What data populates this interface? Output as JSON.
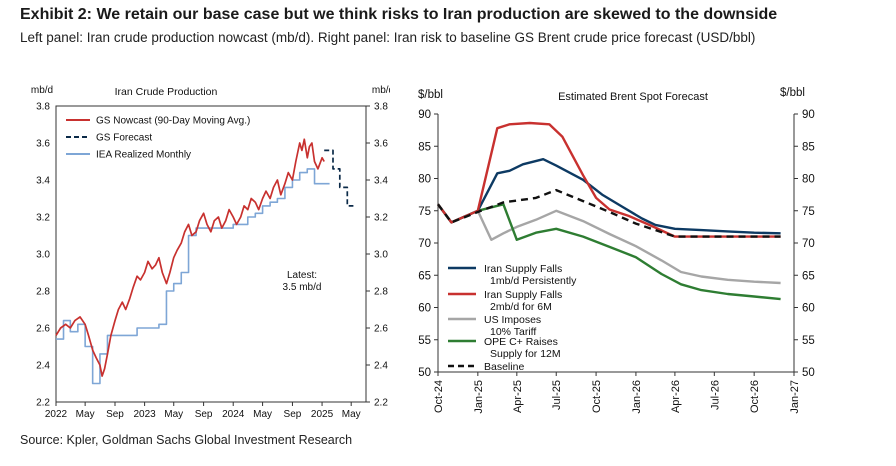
{
  "header": {
    "title": "Exhibit 2: We retain our base case but we think risks to Iran production are skewed to the downside",
    "subtitle": "Left panel: Iran crude production nowcast (mb/d). Right panel: Iran risk to baseline GS Brent crude price forecast (USD/bbl)"
  },
  "footer": {
    "source": "Source: Kpler, Goldman Sachs Global Investment Research"
  },
  "chart_data": [
    {
      "type": "line",
      "title": "Iran Crude Production",
      "ylabel_left": "mb/d",
      "ylabel_right": "mb/d",
      "ylim": [
        2.2,
        3.8
      ],
      "yticks": [
        "3.8",
        "3.6",
        "3.4",
        "3.2",
        "3.0",
        "2.8",
        "2.6",
        "2.4",
        "2.2"
      ],
      "xlim": [
        "2022-01",
        "2025-07"
      ],
      "xticks": [
        "2022",
        "May",
        "Sep",
        "2023",
        "May",
        "Sep",
        "2024",
        "May",
        "Sep",
        "2025",
        "May"
      ],
      "annotation": "Latest:\n3.5 mb/d",
      "series": [
        {
          "name": "GS Nowcast (90-Day Moving Avg.)",
          "color": "#c8312f",
          "style": "solid",
          "points": [
            [
              "2022-01-01",
              2.56
            ],
            [
              "2022-01-20",
              2.6
            ],
            [
              "2022-02-10",
              2.62
            ],
            [
              "2022-03-01",
              2.6
            ],
            [
              "2022-03-20",
              2.64
            ],
            [
              "2022-04-10",
              2.66
            ],
            [
              "2022-05-01",
              2.62
            ],
            [
              "2022-05-15",
              2.56
            ],
            [
              "2022-06-01",
              2.48
            ],
            [
              "2022-06-15",
              2.44
            ],
            [
              "2022-07-01",
              2.4
            ],
            [
              "2022-07-10",
              2.34
            ],
            [
              "2022-07-20",
              2.38
            ],
            [
              "2022-08-01",
              2.46
            ],
            [
              "2022-08-15",
              2.56
            ],
            [
              "2022-09-01",
              2.64
            ],
            [
              "2022-09-15",
              2.7
            ],
            [
              "2022-10-01",
              2.74
            ],
            [
              "2022-10-15",
              2.7
            ],
            [
              "2022-11-01",
              2.76
            ],
            [
              "2022-11-15",
              2.82
            ],
            [
              "2022-12-01",
              2.88
            ],
            [
              "2022-12-15",
              2.86
            ],
            [
              "2023-01-01",
              2.9
            ],
            [
              "2023-01-15",
              2.96
            ],
            [
              "2023-02-01",
              2.92
            ],
            [
              "2023-02-15",
              2.94
            ],
            [
              "2023-03-01",
              2.98
            ],
            [
              "2023-03-15",
              2.9
            ],
            [
              "2023-04-01",
              2.84
            ],
            [
              "2023-04-15",
              2.9
            ],
            [
              "2023-05-01",
              2.98
            ],
            [
              "2023-05-15",
              3.02
            ],
            [
              "2023-06-01",
              3.06
            ],
            [
              "2023-06-15",
              3.12
            ],
            [
              "2023-07-01",
              3.16
            ],
            [
              "2023-07-15",
              3.1
            ],
            [
              "2023-08-01",
              3.12
            ],
            [
              "2023-08-15",
              3.18
            ],
            [
              "2023-09-01",
              3.22
            ],
            [
              "2023-09-15",
              3.16
            ],
            [
              "2023-10-01",
              3.12
            ],
            [
              "2023-10-15",
              3.18
            ],
            [
              "2023-11-01",
              3.2
            ],
            [
              "2023-11-15",
              3.14
            ],
            [
              "2023-12-01",
              3.18
            ],
            [
              "2023-12-15",
              3.24
            ],
            [
              "2024-01-01",
              3.2
            ],
            [
              "2024-01-15",
              3.16
            ],
            [
              "2024-02-01",
              3.2
            ],
            [
              "2024-02-15",
              3.26
            ],
            [
              "2024-03-01",
              3.24
            ],
            [
              "2024-03-15",
              3.3
            ],
            [
              "2024-04-01",
              3.28
            ],
            [
              "2024-04-15",
              3.24
            ],
            [
              "2024-05-01",
              3.3
            ],
            [
              "2024-05-15",
              3.34
            ],
            [
              "2024-06-01",
              3.3
            ],
            [
              "2024-06-15",
              3.36
            ],
            [
              "2024-07-01",
              3.4
            ],
            [
              "2024-07-15",
              3.32
            ],
            [
              "2024-08-01",
              3.38
            ],
            [
              "2024-08-15",
              3.44
            ],
            [
              "2024-09-01",
              3.4
            ],
            [
              "2024-09-15",
              3.5
            ],
            [
              "2024-10-01",
              3.6
            ],
            [
              "2024-10-10",
              3.56
            ],
            [
              "2024-10-20",
              3.62
            ],
            [
              "2024-11-01",
              3.52
            ],
            [
              "2024-11-10",
              3.58
            ],
            [
              "2024-11-20",
              3.6
            ],
            [
              "2024-12-01",
              3.5
            ],
            [
              "2024-12-15",
              3.46
            ],
            [
              "2025-01-01",
              3.52
            ],
            [
              "2025-01-10",
              3.5
            ]
          ]
        },
        {
          "name": "GS Forecast",
          "color": "#0b2a48",
          "style": "dashed",
          "points": [
            [
              "2025-01-10",
              3.56
            ],
            [
              "2025-02-15",
              3.56
            ],
            [
              "2025-02-15",
              3.46
            ],
            [
              "2025-03-15",
              3.46
            ],
            [
              "2025-03-15",
              3.36
            ],
            [
              "2025-04-15",
              3.36
            ],
            [
              "2025-04-15",
              3.26
            ],
            [
              "2025-05-10",
              3.26
            ]
          ]
        },
        {
          "name": "IEA Realized Monthly",
          "color": "#7ea6d6",
          "style": "step",
          "points": [
            [
              "2022-01-01",
              2.54
            ],
            [
              "2022-02-01",
              2.64
            ],
            [
              "2022-03-01",
              2.58
            ],
            [
              "2022-04-01",
              2.62
            ],
            [
              "2022-05-01",
              2.5
            ],
            [
              "2022-06-01",
              2.3
            ],
            [
              "2022-07-01",
              2.46
            ],
            [
              "2022-08-01",
              2.56
            ],
            [
              "2022-09-01",
              2.56
            ],
            [
              "2022-10-01",
              2.56
            ],
            [
              "2022-11-01",
              2.56
            ],
            [
              "2022-12-01",
              2.6
            ],
            [
              "2023-01-01",
              2.6
            ],
            [
              "2023-02-01",
              2.6
            ],
            [
              "2023-03-01",
              2.62
            ],
            [
              "2023-04-01",
              2.8
            ],
            [
              "2023-05-01",
              2.84
            ],
            [
              "2023-06-01",
              2.9
            ],
            [
              "2023-07-01",
              3.1
            ],
            [
              "2023-08-01",
              3.14
            ],
            [
              "2023-09-01",
              3.14
            ],
            [
              "2023-10-01",
              3.14
            ],
            [
              "2023-11-01",
              3.14
            ],
            [
              "2023-12-01",
              3.14
            ],
            [
              "2024-01-01",
              3.16
            ],
            [
              "2024-02-01",
              3.16
            ],
            [
              "2024-03-01",
              3.2
            ],
            [
              "2024-04-01",
              3.22
            ],
            [
              "2024-05-01",
              3.26
            ],
            [
              "2024-06-01",
              3.28
            ],
            [
              "2024-07-01",
              3.3
            ],
            [
              "2024-08-01",
              3.36
            ],
            [
              "2024-09-01",
              3.4
            ],
            [
              "2024-10-01",
              3.44
            ],
            [
              "2024-11-01",
              3.46
            ],
            [
              "2024-12-01",
              3.38
            ],
            [
              "2025-01-01",
              3.38
            ]
          ]
        }
      ]
    },
    {
      "type": "line",
      "title": "Estimated Brent Spot Forecast",
      "ylabel_left": "$/bbl",
      "ylabel_right": "$/bbl",
      "ylim": [
        50,
        90
      ],
      "yticks": [
        "90",
        "85",
        "80",
        "75",
        "70",
        "65",
        "60",
        "55",
        "50"
      ],
      "xlim": [
        "2024-10",
        "2027-01"
      ],
      "xticks": [
        "Oct-24",
        "Jan-25",
        "Apr-25",
        "Jul-25",
        "Oct-25",
        "Jan-26",
        "Apr-26",
        "Jul-26",
        "Oct-26",
        "Jan-27"
      ],
      "series": [
        {
          "name": "Iran Supply Falls 1mb/d Persistently",
          "color": "#0d3a63",
          "style": "solid",
          "points": [
            [
              "2024-10-01",
              76
            ],
            [
              "2024-11-01",
              73.2
            ],
            [
              "2025-01-01",
              75
            ],
            [
              "2025-02-15",
              80.8
            ],
            [
              "2025-03-15",
              81.2
            ],
            [
              "2025-04-15",
              82.2
            ],
            [
              "2025-06-01",
              83
            ],
            [
              "2025-07-01",
              82
            ],
            [
              "2025-09-01",
              79.8
            ],
            [
              "2025-10-15",
              77.5
            ],
            [
              "2025-12-01",
              75.6
            ],
            [
              "2026-01-15",
              73.8
            ],
            [
              "2026-02-15",
              72.8
            ],
            [
              "2026-04-01",
              72.2
            ],
            [
              "2026-06-01",
              72
            ],
            [
              "2026-08-01",
              71.8
            ],
            [
              "2026-10-01",
              71.6
            ],
            [
              "2026-12-01",
              71.5
            ]
          ]
        },
        {
          "name": "Iran Supply Falls 2mb/d for 6M",
          "color": "#c8312f",
          "style": "solid",
          "points": [
            [
              "2024-10-01",
              76
            ],
            [
              "2024-11-01",
              73.2
            ],
            [
              "2025-01-01",
              75
            ],
            [
              "2025-02-15",
              87.8
            ],
            [
              "2025-03-15",
              88.4
            ],
            [
              "2025-05-01",
              88.6
            ],
            [
              "2025-06-15",
              88.4
            ],
            [
              "2025-07-15",
              86.5
            ],
            [
              "2025-09-01",
              80.5
            ],
            [
              "2025-10-01",
              77
            ],
            [
              "2025-11-01",
              75.2
            ],
            [
              "2025-12-15",
              74.2
            ],
            [
              "2026-02-01",
              72.8
            ],
            [
              "2026-04-01",
              71
            ],
            [
              "2026-06-01",
              71
            ],
            [
              "2026-08-01",
              71
            ],
            [
              "2026-10-01",
              71
            ],
            [
              "2026-12-01",
              71
            ]
          ]
        },
        {
          "name": "US Imposes 10% Tariff",
          "color": "#a6a6a6",
          "style": "solid",
          "points": [
            [
              "2024-10-01",
              76
            ],
            [
              "2024-11-01",
              73.2
            ],
            [
              "2025-01-01",
              75
            ],
            [
              "2025-02-01",
              70.5
            ],
            [
              "2025-03-01",
              71.5
            ],
            [
              "2025-04-01",
              72.5
            ],
            [
              "2025-05-15",
              73.6
            ],
            [
              "2025-07-01",
              75
            ],
            [
              "2025-09-01",
              73.4
            ],
            [
              "2025-11-01",
              71.4
            ],
            [
              "2026-01-01",
              69.5
            ],
            [
              "2026-03-01",
              67.3
            ],
            [
              "2026-04-15",
              65.5
            ],
            [
              "2026-06-01",
              64.8
            ],
            [
              "2026-08-01",
              64.3
            ],
            [
              "2026-10-01",
              64
            ],
            [
              "2026-12-01",
              63.8
            ]
          ]
        },
        {
          "name": "OPEC+ Raises Supply for 12M",
          "color": "#2e7d32",
          "style": "solid",
          "points": [
            [
              "2024-10-01",
              76
            ],
            [
              "2024-11-01",
              73.2
            ],
            [
              "2025-01-01",
              75
            ],
            [
              "2025-03-01",
              76
            ],
            [
              "2025-04-01",
              70.5
            ],
            [
              "2025-05-15",
              71.6
            ],
            [
              "2025-07-01",
              72.2
            ],
            [
              "2025-09-01",
              71
            ],
            [
              "2025-11-01",
              69.4
            ],
            [
              "2026-01-01",
              67.8
            ],
            [
              "2026-03-01",
              65.2
            ],
            [
              "2026-04-15",
              63.6
            ],
            [
              "2026-06-01",
              62.7
            ],
            [
              "2026-08-01",
              62.1
            ],
            [
              "2026-10-01",
              61.7
            ],
            [
              "2026-12-01",
              61.3
            ]
          ]
        },
        {
          "name": "Baseline",
          "color": "#111111",
          "style": "dashed",
          "points": [
            [
              "2024-10-01",
              76
            ],
            [
              "2024-11-01",
              73.2
            ],
            [
              "2025-01-01",
              74.8
            ],
            [
              "2025-03-01",
              76.3
            ],
            [
              "2025-05-15",
              77
            ],
            [
              "2025-07-01",
              78.2
            ],
            [
              "2025-09-01",
              76.5
            ],
            [
              "2025-11-01",
              74.8
            ],
            [
              "2026-01-01",
              73
            ],
            [
              "2026-04-01",
              71
            ],
            [
              "2026-06-01",
              71
            ],
            [
              "2026-08-01",
              71
            ],
            [
              "2026-10-01",
              71
            ],
            [
              "2026-12-01",
              71
            ]
          ]
        }
      ]
    }
  ]
}
